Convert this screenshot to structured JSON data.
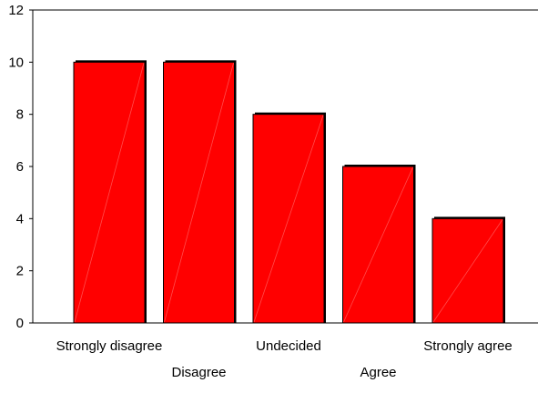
{
  "chart_data": {
    "type": "bar",
    "title": "",
    "xlabel": "",
    "ylabel": "",
    "categories": [
      "Strongly disagree",
      "Disagree",
      "Undecided",
      "Agree",
      "Strongly agree"
    ],
    "category_labels_display": [
      "Strongly disagree",
      "Disagree",
      "Undecided",
      "Agree",
      "Strongly agree"
    ],
    "values": [
      10,
      10,
      8,
      6,
      4
    ],
    "ylim": [
      0,
      12
    ],
    "yticks": [
      0,
      2,
      4,
      6,
      8,
      10,
      12
    ],
    "grid": false,
    "legend": "none",
    "colors": {
      "bar_fill": "#ff0000",
      "bar_stroke": "#000000",
      "bar_shadow": "#000000",
      "axis": "#000000"
    }
  }
}
